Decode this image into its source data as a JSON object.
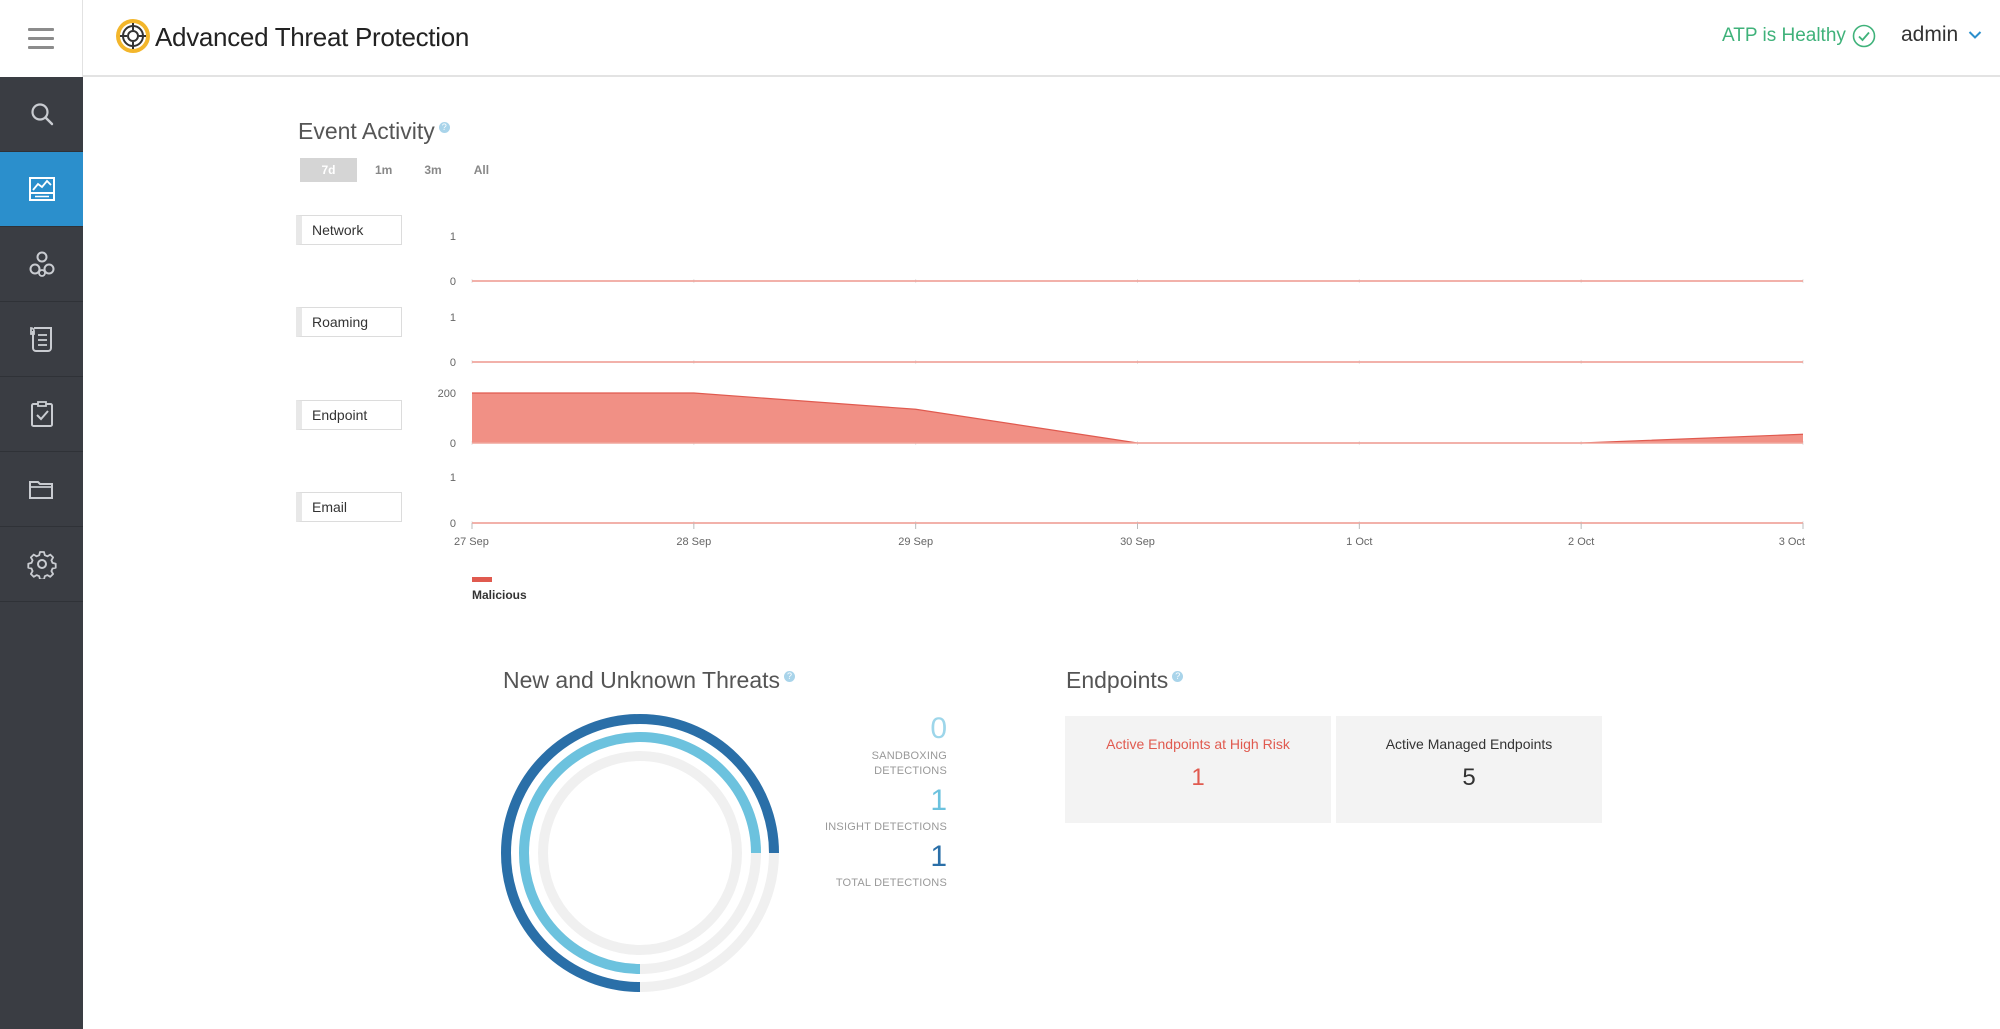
{
  "header": {
    "app_title": "Advanced Threat Protection",
    "health_status": "ATP is Healthy",
    "user_name": "admin"
  },
  "sidebar": {
    "items": [
      {
        "icon": "search-icon"
      },
      {
        "icon": "dashboard-icon",
        "active": true
      },
      {
        "icon": "incidents-icon"
      },
      {
        "icon": "events-icon"
      },
      {
        "icon": "actions-icon"
      },
      {
        "icon": "folder-icon"
      },
      {
        "icon": "gear-icon"
      }
    ]
  },
  "event_activity": {
    "title": "Event Activity",
    "ranges": [
      "7d",
      "1m",
      "3m",
      "All"
    ],
    "active_range": "7d",
    "rows": [
      {
        "label": "Network",
        "ymax": "1",
        "ymin": "0"
      },
      {
        "label": "Roaming",
        "ymax": "1",
        "ymin": "0"
      },
      {
        "label": "Endpoint",
        "ymax": "200",
        "ymin": "0"
      },
      {
        "label": "Email",
        "ymax": "1",
        "ymin": "0"
      }
    ],
    "legend": "Malicious"
  },
  "chart_data": {
    "type": "area",
    "x": [
      "27 Sep",
      "28 Sep",
      "29 Sep",
      "30 Sep",
      "1 Oct",
      "2 Oct",
      "3 Oct"
    ],
    "series": [
      {
        "name": "Malicious",
        "panel": "Network",
        "values": [
          0,
          0,
          0,
          0,
          0,
          0,
          0
        ]
      },
      {
        "name": "Malicious",
        "panel": "Roaming",
        "values": [
          0,
          0,
          0,
          0,
          0,
          0,
          0
        ]
      },
      {
        "name": "Malicious",
        "panel": "Endpoint",
        "values": [
          200,
          200,
          135,
          0,
          0,
          0,
          35
        ]
      },
      {
        "name": "Malicious",
        "panel": "Email",
        "values": [
          0,
          0,
          0,
          0,
          0,
          0,
          0
        ]
      }
    ],
    "color": "#f08a7e",
    "line_color": "#e05a4f"
  },
  "threats": {
    "title": "New and Unknown Threats",
    "stats": [
      {
        "value": "0",
        "label_1": "SANDBOXING",
        "label_2": "DETECTIONS",
        "color": "#9dd6ea"
      },
      {
        "value": "1",
        "label_1": "INSIGHT DETECTIONS",
        "label_2": "",
        "color": "#6cc2de"
      },
      {
        "value": "1",
        "label_1": "TOTAL DETECTIONS",
        "label_2": "",
        "color": "#2a6fa8"
      }
    ]
  },
  "endpoints": {
    "title": "Endpoints",
    "cards": [
      {
        "title": "Active Endpoints at High Risk",
        "value": "1",
        "color": "#e05a4f"
      },
      {
        "title": "Active Managed Endpoints",
        "value": "5",
        "color": "#333333"
      }
    ]
  }
}
